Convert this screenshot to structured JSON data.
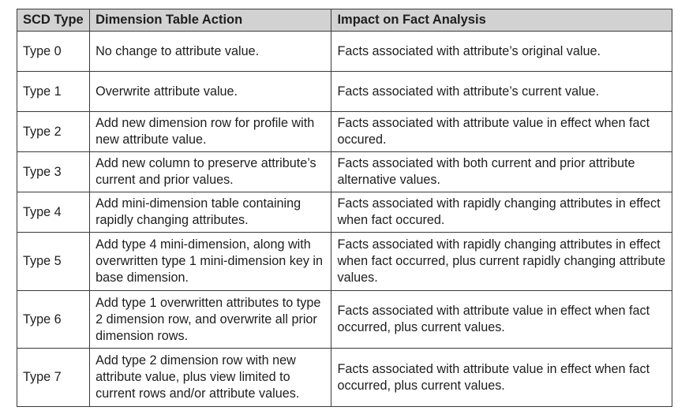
{
  "table": {
    "headers": [
      "SCD Type",
      "Dimension Table Action",
      "Impact on Fact Analysis"
    ],
    "rows": [
      {
        "type": "Type 0",
        "action": "No change to attribute value.",
        "impact": "Facts associated with attribute’s original value."
      },
      {
        "type": "Type 1",
        "action": "Overwrite attribute value.",
        "impact": "Facts associated with attribute’s current value."
      },
      {
        "type": "Type 2",
        "action": "Add new dimension row for profile with new attribute value.",
        "impact": "Facts associated with attribute value in effect when fact occured."
      },
      {
        "type": "Type 3",
        "action": "Add new column to preserve attribute’s current and prior values.",
        "impact": "Facts associated with both current and prior attribute alternative values."
      },
      {
        "type": "Type 4",
        "action": "Add mini-dimension table containing rapidly changing attributes.",
        "impact": "Facts associated with rapidly changing attributes in effect when fact occured."
      },
      {
        "type": "Type 5",
        "action": "Add type 4 mini-dimension, along with overwritten type 1 mini-dimension key in base dimension.",
        "impact": "Facts associated with rapidly changing attributes in effect when fact occurred, plus current rapidly changing attribute values."
      },
      {
        "type": "Type 6",
        "action": "Add type 1 overwritten attributes to type 2 dimension row, and overwrite all prior dimension rows.",
        "impact": "Facts associated with attribute value in effect when fact occurred, plus current values."
      },
      {
        "type": "Type 7",
        "action": "Add type 2 dimension row with new attribute value, plus view limited to current rows and/or attribute values.",
        "impact": "Facts associated with attribute value in effect when fact occurred, plus current values."
      }
    ]
  }
}
